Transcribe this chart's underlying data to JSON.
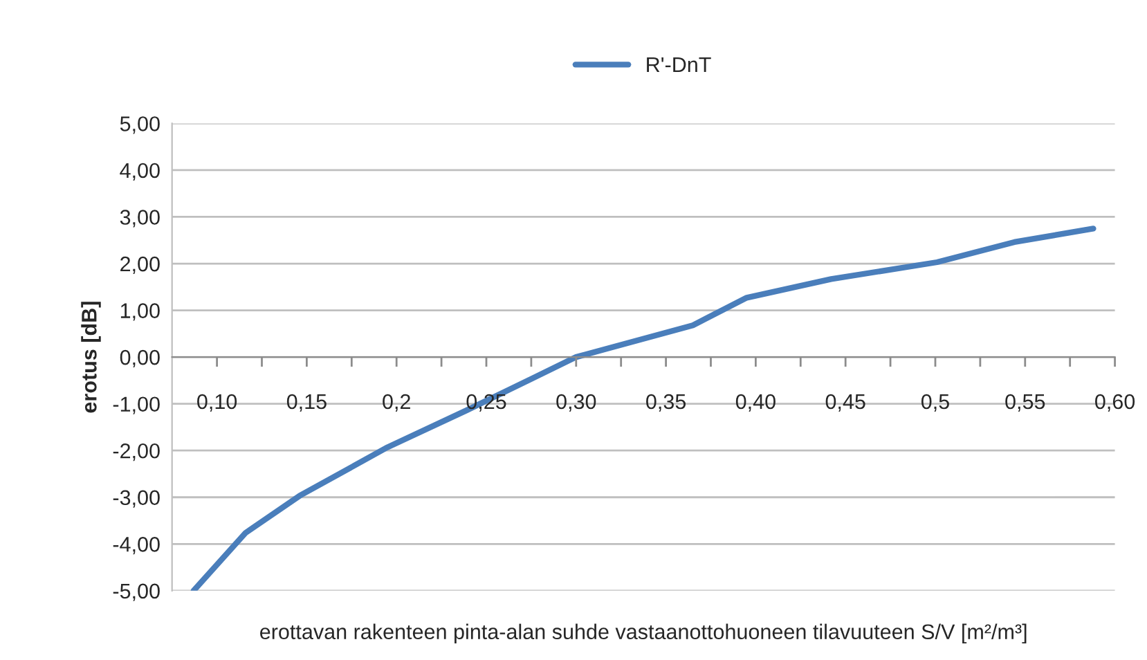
{
  "chart_data": {
    "type": "line",
    "xlabel": "erottavan rakenteen pinta-alan suhde vastaanottohuoneen tilavuuteen S/V [m²/m³]",
    "ylabel": "erotus [dB]",
    "series": [
      {
        "name": "R'-DnT",
        "color": "#4a7ebb",
        "x": [
          0.087,
          0.116,
          0.146,
          0.195,
          0.239,
          0.3,
          0.365,
          0.395,
          0.442,
          0.501,
          0.544,
          0.588
        ],
        "values": [
          -5.0,
          -3.76,
          -2.97,
          -1.93,
          -1.14,
          0.0,
          0.68,
          1.27,
          1.67,
          2.03,
          2.46,
          2.75
        ]
      }
    ],
    "xlim": [
      0.075,
      0.6
    ],
    "xticks": [
      {
        "value": 0.1,
        "label": "0,10"
      },
      {
        "value": 0.125,
        "label": null
      },
      {
        "value": 0.15,
        "label": "0,15"
      },
      {
        "value": 0.175,
        "label": null
      },
      {
        "value": 0.2,
        "label": "0,2"
      },
      {
        "value": 0.225,
        "label": null
      },
      {
        "value": 0.25,
        "label": "0,25"
      },
      {
        "value": 0.275,
        "label": null
      },
      {
        "value": 0.3,
        "label": "0,30"
      },
      {
        "value": 0.325,
        "label": null
      },
      {
        "value": 0.35,
        "label": "0,35"
      },
      {
        "value": 0.375,
        "label": null
      },
      {
        "value": 0.4,
        "label": "0,40"
      },
      {
        "value": 0.425,
        "label": null
      },
      {
        "value": 0.45,
        "label": "0,45"
      },
      {
        "value": 0.475,
        "label": null
      },
      {
        "value": 0.5,
        "label": "0,5"
      },
      {
        "value": 0.525,
        "label": null
      },
      {
        "value": 0.55,
        "label": "0,55"
      },
      {
        "value": 0.575,
        "label": null
      },
      {
        "value": 0.6,
        "label": "0,60"
      }
    ],
    "ylim": [
      -5,
      5
    ],
    "yticks": [
      {
        "value": -5,
        "label": "-5,00"
      },
      {
        "value": -4,
        "label": "-4,00"
      },
      {
        "value": -3,
        "label": "-3,00"
      },
      {
        "value": -2,
        "label": "-2,00"
      },
      {
        "value": -1,
        "label": "-1,00"
      },
      {
        "value": 0,
        "label": "0,00"
      },
      {
        "value": 1,
        "label": "1,00"
      },
      {
        "value": 2,
        "label": "2,00"
      },
      {
        "value": 3,
        "label": "3,00"
      },
      {
        "value": 4,
        "label": "4,00"
      },
      {
        "value": 5,
        "label": "5,00"
      }
    ],
    "grid": "y",
    "legend": "top",
    "marker": "none",
    "line_style": "solid"
  }
}
